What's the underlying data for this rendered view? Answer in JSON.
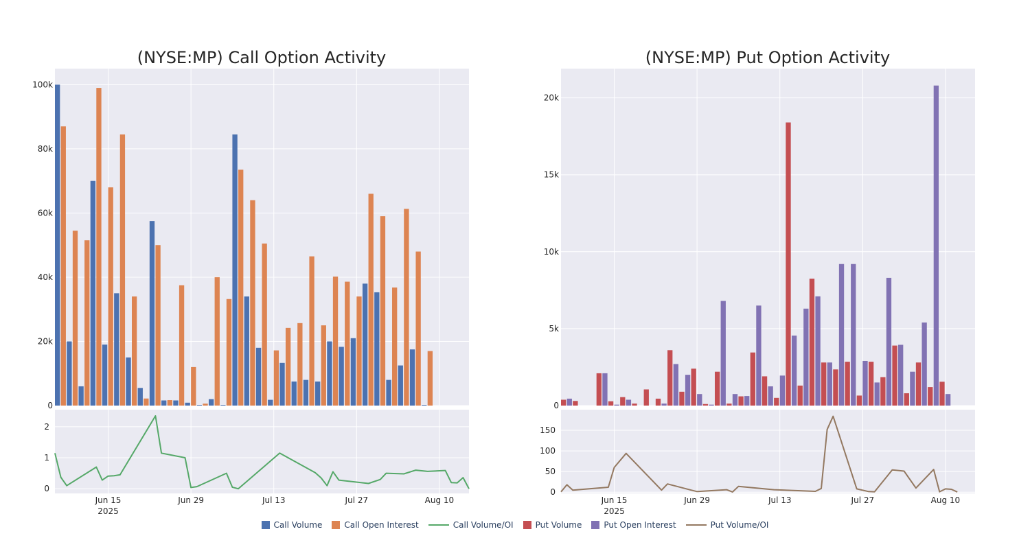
{
  "colors": {
    "call_volume": "#4c72b0",
    "call_oi": "#dd8452",
    "call_ratio": "#55a868",
    "put_volume": "#c44e52",
    "put_oi": "#8172b3",
    "put_ratio": "#937860",
    "plot_bg": "#eaeaf2",
    "grid": "#ffffff"
  },
  "legend": [
    {
      "label": "Call Volume",
      "kind": "box",
      "color": "#4c72b0"
    },
    {
      "label": "Call Open Interest",
      "kind": "box",
      "color": "#dd8452"
    },
    {
      "label": "Call Volume/OI",
      "kind": "line",
      "color": "#55a868"
    },
    {
      "label": "Put Volume",
      "kind": "box",
      "color": "#c44e52"
    },
    {
      "label": "Put Open Interest",
      "kind": "box",
      "color": "#8172b3"
    },
    {
      "label": "Put Volume/OI",
      "kind": "line",
      "color": "#937860"
    }
  ],
  "chart_data": [
    {
      "type": "bar",
      "title": "(NYSE:MP) Call Option Activity",
      "x_range": [
        "2025-06-06",
        "2025-08-15"
      ],
      "x_ticks": [
        {
          "date": "2025-06-15",
          "label": "Jun 15",
          "sublabel": "2025"
        },
        {
          "date": "2025-06-29",
          "label": "Jun 29",
          "sublabel": ""
        },
        {
          "date": "2025-07-13",
          "label": "Jul 13",
          "sublabel": ""
        },
        {
          "date": "2025-07-27",
          "label": "Jul 27",
          "sublabel": ""
        },
        {
          "date": "2025-08-10",
          "label": "Aug 10",
          "sublabel": ""
        }
      ],
      "ylim": [
        0,
        105000
      ],
      "y_ticks": [
        {
          "v": 0,
          "label": "0"
        },
        {
          "v": 20000,
          "label": "20k"
        },
        {
          "v": 40000,
          "label": "40k"
        },
        {
          "v": 60000,
          "label": "60k"
        },
        {
          "v": 80000,
          "label": "80k"
        },
        {
          "v": 100000,
          "label": "100k"
        }
      ],
      "ratio_ylim": [
        -0.15,
        2.55
      ],
      "ratio_ticks": [
        {
          "v": 0,
          "label": "0"
        },
        {
          "v": 1,
          "label": "1"
        },
        {
          "v": 2,
          "label": "2"
        }
      ],
      "grid": true,
      "series": [
        {
          "name": "Call Volume",
          "points": [
            [
              "2025-06-06",
              100000
            ],
            [
              "2025-06-08",
              20000
            ],
            [
              "2025-06-10",
              6000
            ],
            [
              "2025-06-12",
              70000
            ],
            [
              "2025-06-14",
              19000
            ],
            [
              "2025-06-16",
              35000
            ],
            [
              "2025-06-18",
              15000
            ],
            [
              "2025-06-20",
              5500
            ],
            [
              "2025-06-22",
              57500
            ],
            [
              "2025-06-24",
              1600
            ],
            [
              "2025-06-26",
              1600
            ],
            [
              "2025-06-28",
              900
            ],
            [
              "2025-06-30",
              200
            ],
            [
              "2025-07-02",
              2000
            ],
            [
              "2025-07-04",
              200
            ],
            [
              "2025-07-06",
              84500
            ],
            [
              "2025-07-08",
              34000
            ],
            [
              "2025-07-10",
              18000
            ],
            [
              "2025-07-12",
              1800
            ],
            [
              "2025-07-14",
              13300
            ],
            [
              "2025-07-16",
              7500
            ],
            [
              "2025-07-18",
              8000
            ],
            [
              "2025-07-20",
              7500
            ],
            [
              "2025-07-22",
              20000
            ],
            [
              "2025-07-24",
              18300
            ],
            [
              "2025-07-26",
              21000
            ],
            [
              "2025-07-28",
              38000
            ],
            [
              "2025-07-30",
              35300
            ],
            [
              "2025-08-01",
              8000
            ],
            [
              "2025-08-03",
              12500
            ],
            [
              "2025-08-05",
              17500
            ],
            [
              "2025-08-07",
              200
            ]
          ]
        },
        {
          "name": "Call Open Interest",
          "points": [
            [
              "2025-06-06",
              87000
            ],
            [
              "2025-06-08",
              54500
            ],
            [
              "2025-06-10",
              51500
            ],
            [
              "2025-06-12",
              99000
            ],
            [
              "2025-06-14",
              68000
            ],
            [
              "2025-06-16",
              84500
            ],
            [
              "2025-06-18",
              34000
            ],
            [
              "2025-06-20",
              2200
            ],
            [
              "2025-06-22",
              50000
            ],
            [
              "2025-06-24",
              1700
            ],
            [
              "2025-06-26",
              37500
            ],
            [
              "2025-06-28",
              12000
            ],
            [
              "2025-06-30",
              600
            ],
            [
              "2025-07-02",
              40000
            ],
            [
              "2025-07-04",
              33200
            ],
            [
              "2025-07-06",
              73500
            ],
            [
              "2025-07-08",
              64000
            ],
            [
              "2025-07-10",
              50500
            ],
            [
              "2025-07-12",
              17200
            ],
            [
              "2025-07-14",
              24200
            ],
            [
              "2025-07-16",
              25700
            ],
            [
              "2025-07-18",
              46500
            ],
            [
              "2025-07-20",
              25000
            ],
            [
              "2025-07-22",
              40200
            ],
            [
              "2025-07-24",
              38600
            ],
            [
              "2025-07-26",
              34000
            ],
            [
              "2025-07-28",
              66000
            ],
            [
              "2025-07-30",
              59000
            ],
            [
              "2025-08-01",
              36800
            ],
            [
              "2025-08-03",
              61300
            ],
            [
              "2025-08-05",
              48000
            ],
            [
              "2025-08-07",
              17000
            ]
          ]
        },
        {
          "name": "Call Volume/OI",
          "points": [
            [
              "2025-06-06",
              1.15
            ],
            [
              "2025-06-07",
              0.37
            ],
            [
              "2025-06-08",
              0.1
            ],
            [
              "2025-06-13",
              0.7
            ],
            [
              "2025-06-14",
              0.28
            ],
            [
              "2025-06-15",
              0.41
            ],
            [
              "2025-06-16",
              0.42
            ],
            [
              "2025-06-17",
              0.45
            ],
            [
              "2025-06-23",
              2.35
            ],
            [
              "2025-06-24",
              1.15
            ],
            [
              "2025-06-28",
              1.0
            ],
            [
              "2025-06-29",
              0.04
            ],
            [
              "2025-06-30",
              0.07
            ],
            [
              "2025-07-05",
              0.5
            ],
            [
              "2025-07-06",
              0.05
            ],
            [
              "2025-07-07",
              0.0
            ],
            [
              "2025-07-14",
              1.15
            ],
            [
              "2025-07-20",
              0.52
            ],
            [
              "2025-07-21",
              0.35
            ],
            [
              "2025-07-22",
              0.1
            ],
            [
              "2025-07-23",
              0.55
            ],
            [
              "2025-07-24",
              0.28
            ],
            [
              "2025-07-29",
              0.17
            ],
            [
              "2025-07-31",
              0.3
            ],
            [
              "2025-08-01",
              0.5
            ],
            [
              "2025-08-04",
              0.48
            ],
            [
              "2025-08-06",
              0.6
            ],
            [
              "2025-08-08",
              0.56
            ],
            [
              "2025-08-11",
              0.59
            ],
            [
              "2025-08-12",
              0.2
            ],
            [
              "2025-08-13",
              0.19
            ],
            [
              "2025-08-14",
              0.36
            ],
            [
              "2025-08-15",
              0.0
            ]
          ]
        }
      ]
    },
    {
      "type": "bar",
      "title": "(NYSE:MP) Put Option Activity",
      "x_range": [
        "2025-06-06",
        "2025-08-15"
      ],
      "x_ticks": [
        {
          "date": "2025-06-15",
          "label": "Jun 15",
          "sublabel": "2025"
        },
        {
          "date": "2025-06-29",
          "label": "Jun 29",
          "sublabel": ""
        },
        {
          "date": "2025-07-13",
          "label": "Jul 13",
          "sublabel": ""
        },
        {
          "date": "2025-07-27",
          "label": "Jul 27",
          "sublabel": ""
        },
        {
          "date": "2025-08-10",
          "label": "Aug 10",
          "sublabel": ""
        }
      ],
      "ylim": [
        0,
        21900
      ],
      "y_ticks": [
        {
          "v": 0,
          "label": "0"
        },
        {
          "v": 5000,
          "label": "5k"
        },
        {
          "v": 10000,
          "label": "10k"
        },
        {
          "v": 15000,
          "label": "15k"
        },
        {
          "v": 20000,
          "label": "20k"
        }
      ],
      "ratio_ylim": [
        -3,
        200
      ],
      "ratio_ticks": [
        {
          "v": 0,
          "label": "0"
        },
        {
          "v": 50,
          "label": "50"
        },
        {
          "v": 100,
          "label": "100"
        },
        {
          "v": 150,
          "label": "150"
        }
      ],
      "grid": true,
      "series": [
        {
          "name": "Put Volume",
          "points": [
            [
              "2025-06-06",
              380
            ],
            [
              "2025-06-08",
              300
            ],
            [
              "2025-06-10",
              0
            ],
            [
              "2025-06-12",
              2100
            ],
            [
              "2025-06-14",
              280
            ],
            [
              "2025-06-16",
              550
            ],
            [
              "2025-06-18",
              130
            ],
            [
              "2025-06-20",
              1050
            ],
            [
              "2025-06-22",
              450
            ],
            [
              "2025-06-24",
              3600
            ],
            [
              "2025-06-26",
              900
            ],
            [
              "2025-06-28",
              2400
            ],
            [
              "2025-06-30",
              100
            ],
            [
              "2025-07-02",
              2200
            ],
            [
              "2025-07-04",
              130
            ],
            [
              "2025-07-06",
              600
            ],
            [
              "2025-07-08",
              3450
            ],
            [
              "2025-07-10",
              1900
            ],
            [
              "2025-07-12",
              500
            ],
            [
              "2025-07-14",
              18400
            ],
            [
              "2025-07-16",
              1300
            ],
            [
              "2025-07-18",
              8250
            ],
            [
              "2025-07-20",
              2800
            ],
            [
              "2025-07-22",
              2350
            ],
            [
              "2025-07-24",
              2850
            ],
            [
              "2025-07-26",
              650
            ],
            [
              "2025-07-28",
              2850
            ],
            [
              "2025-07-30",
              1850
            ],
            [
              "2025-08-01",
              3900
            ],
            [
              "2025-08-03",
              800
            ],
            [
              "2025-08-05",
              2800
            ],
            [
              "2025-08-07",
              1200
            ],
            [
              "2025-08-09",
              1550
            ]
          ]
        },
        {
          "name": "Put Open Interest",
          "points": [
            [
              "2025-06-06",
              450
            ],
            [
              "2025-06-08",
              0
            ],
            [
              "2025-06-10",
              0
            ],
            [
              "2025-06-12",
              2100
            ],
            [
              "2025-06-14",
              60
            ],
            [
              "2025-06-16",
              380
            ],
            [
              "2025-06-18",
              0
            ],
            [
              "2025-06-20",
              0
            ],
            [
              "2025-06-22",
              130
            ],
            [
              "2025-06-24",
              2700
            ],
            [
              "2025-06-26",
              2000
            ],
            [
              "2025-06-28",
              750
            ],
            [
              "2025-06-30",
              60
            ],
            [
              "2025-07-02",
              6800
            ],
            [
              "2025-07-04",
              750
            ],
            [
              "2025-07-06",
              620
            ],
            [
              "2025-07-08",
              6500
            ],
            [
              "2025-07-10",
              1250
            ],
            [
              "2025-07-12",
              1950
            ],
            [
              "2025-07-14",
              4550
            ],
            [
              "2025-07-16",
              6300
            ],
            [
              "2025-07-18",
              7100
            ],
            [
              "2025-07-20",
              2800
            ],
            [
              "2025-07-22",
              9200
            ],
            [
              "2025-07-24",
              9200
            ],
            [
              "2025-07-26",
              2900
            ],
            [
              "2025-07-28",
              1500
            ],
            [
              "2025-07-30",
              8300
            ],
            [
              "2025-08-01",
              3950
            ],
            [
              "2025-08-03",
              2200
            ],
            [
              "2025-08-05",
              5400
            ],
            [
              "2025-08-07",
              20800
            ],
            [
              "2025-08-09",
              750
            ]
          ]
        },
        {
          "name": "Put Volume/OI",
          "points": [
            [
              "2025-06-06",
              0.8
            ],
            [
              "2025-06-07",
              18
            ],
            [
              "2025-06-08",
              5
            ],
            [
              "2025-06-14",
              12
            ],
            [
              "2025-06-15",
              60
            ],
            [
              "2025-06-17",
              94
            ],
            [
              "2025-06-23",
              5
            ],
            [
              "2025-06-24",
              20
            ],
            [
              "2025-06-28",
              5
            ],
            [
              "2025-06-29",
              1.5
            ],
            [
              "2025-07-04",
              6
            ],
            [
              "2025-07-05",
              0.5
            ],
            [
              "2025-07-06",
              14
            ],
            [
              "2025-07-12",
              6
            ],
            [
              "2025-07-19",
              2
            ],
            [
              "2025-07-20",
              9
            ],
            [
              "2025-07-21",
              152
            ],
            [
              "2025-07-22",
              184
            ],
            [
              "2025-07-26",
              8
            ],
            [
              "2025-07-28",
              1.5
            ],
            [
              "2025-07-29",
              1
            ],
            [
              "2025-08-01",
              54
            ],
            [
              "2025-08-03",
              51
            ],
            [
              "2025-08-05",
              10
            ],
            [
              "2025-08-08",
              55
            ],
            [
              "2025-08-09",
              1
            ],
            [
              "2025-08-10",
              8
            ],
            [
              "2025-08-11",
              7
            ],
            [
              "2025-08-12",
              0.5
            ]
          ]
        }
      ]
    }
  ]
}
